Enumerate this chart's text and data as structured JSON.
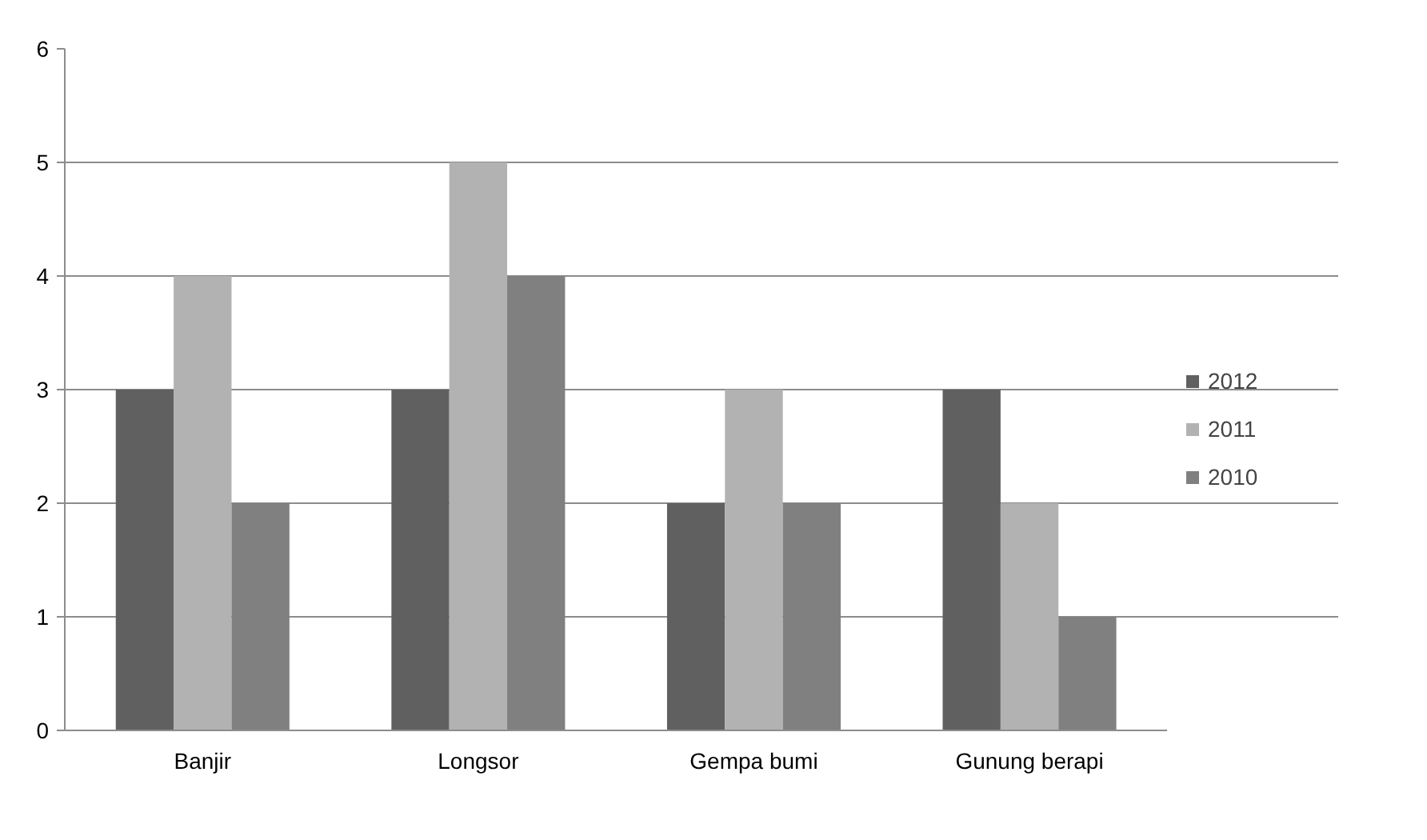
{
  "chart_data": {
    "type": "bar",
    "categories": [
      "Banjir",
      "Longsor",
      "Gempa bumi",
      "Gunung berapi"
    ],
    "series": [
      {
        "name": "2012",
        "color": "#606060",
        "values": [
          3,
          3,
          2,
          3
        ]
      },
      {
        "name": "2011",
        "color": "#b2b2b2",
        "values": [
          4,
          5,
          3,
          2
        ]
      },
      {
        "name": "2010",
        "color": "#808080",
        "values": [
          2,
          4,
          2,
          1
        ]
      }
    ],
    "ylim": [
      0,
      6
    ],
    "yticks": [
      0,
      1,
      2,
      3,
      4,
      5,
      6
    ],
    "grid": "y",
    "legend": "right"
  }
}
